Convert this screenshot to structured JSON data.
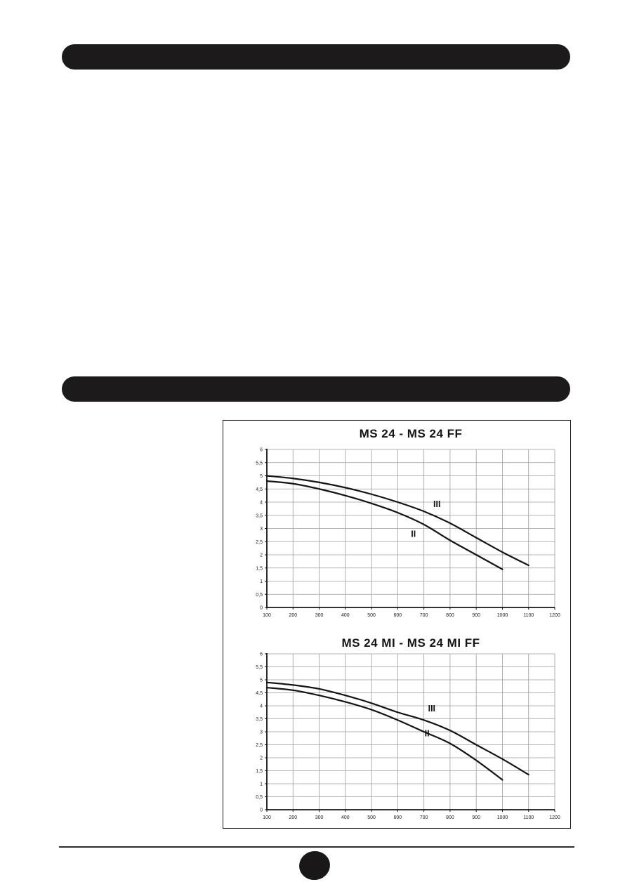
{
  "page": {
    "footer": {
      "page_badge_label": ""
    }
  },
  "chart_data": [
    {
      "type": "line",
      "title": "MS 24 - MS 24 FF",
      "xlabel": "",
      "ylabel": "",
      "xlim": [
        100,
        1200
      ],
      "ylim": [
        0,
        6
      ],
      "grid": true,
      "legend_position": "inline-labels",
      "x_ticks": [
        100,
        200,
        300,
        400,
        500,
        600,
        700,
        800,
        900,
        1000,
        1100,
        1200
      ],
      "x_tick_labels": [
        "100",
        "200",
        "300",
        "400",
        "500",
        "600",
        "700",
        "800",
        "900",
        "1000",
        "1100",
        "1200"
      ],
      "y_ticks": [
        0,
        0.5,
        1,
        1.5,
        2,
        2.5,
        3,
        3.5,
        4,
        4.5,
        5,
        5.5,
        6
      ],
      "y_tick_labels": [
        "0",
        "0,5",
        "1",
        "1,5",
        "2",
        "2,5",
        "3",
        "3,5",
        "4",
        "4,5",
        "5",
        "5,5",
        "6"
      ],
      "series": [
        {
          "name": "III",
          "x": [
            100,
            200,
            300,
            400,
            500,
            600,
            700,
            800,
            900,
            1000,
            1100
          ],
          "values": [
            5.0,
            4.9,
            4.75,
            4.55,
            4.3,
            4.0,
            3.65,
            3.2,
            2.65,
            2.1,
            1.6
          ],
          "label_pos": {
            "x": 750,
            "y": 3.82
          }
        },
        {
          "name": "II",
          "x": [
            100,
            200,
            300,
            400,
            500,
            600,
            700,
            800,
            900,
            1000
          ],
          "values": [
            4.8,
            4.7,
            4.5,
            4.25,
            3.95,
            3.6,
            3.15,
            2.55,
            2.0,
            1.45
          ],
          "label_pos": {
            "x": 660,
            "y": 2.68
          }
        }
      ]
    },
    {
      "type": "line",
      "title": "MS 24 MI - MS 24 MI FF",
      "xlabel": "",
      "ylabel": "",
      "xlim": [
        100,
        1200
      ],
      "ylim": [
        0,
        6
      ],
      "grid": true,
      "legend_position": "inline-labels",
      "x_ticks": [
        100,
        200,
        300,
        400,
        500,
        600,
        700,
        800,
        900,
        1000,
        1100,
        1200
      ],
      "x_tick_labels": [
        "100",
        "200",
        "300",
        "400",
        "500",
        "600",
        "700",
        "800",
        "900",
        "1000",
        "1100",
        "1200"
      ],
      "y_ticks": [
        0,
        0.5,
        1,
        1.5,
        2,
        2.5,
        3,
        3.5,
        4,
        4.5,
        5,
        5.5,
        6
      ],
      "y_tick_labels": [
        "0",
        "0,5",
        "1",
        "1,5",
        "2",
        "2,5",
        "3",
        "3,5",
        "4",
        "4,5",
        "5",
        "5,5",
        "6"
      ],
      "series": [
        {
          "name": "III",
          "x": [
            100,
            200,
            300,
            400,
            500,
            600,
            700,
            800,
            900,
            1000,
            1100
          ],
          "values": [
            4.9,
            4.8,
            4.65,
            4.4,
            4.1,
            3.75,
            3.45,
            3.05,
            2.5,
            1.95,
            1.35
          ],
          "label_pos": {
            "x": 730,
            "y": 3.78
          }
        },
        {
          "name": "II",
          "x": [
            100,
            200,
            300,
            400,
            500,
            600,
            700,
            800,
            900,
            1000
          ],
          "values": [
            4.7,
            4.6,
            4.4,
            4.15,
            3.85,
            3.45,
            3.0,
            2.55,
            1.9,
            1.15
          ],
          "label_pos": {
            "x": 712,
            "y": 2.82
          }
        }
      ]
    }
  ]
}
